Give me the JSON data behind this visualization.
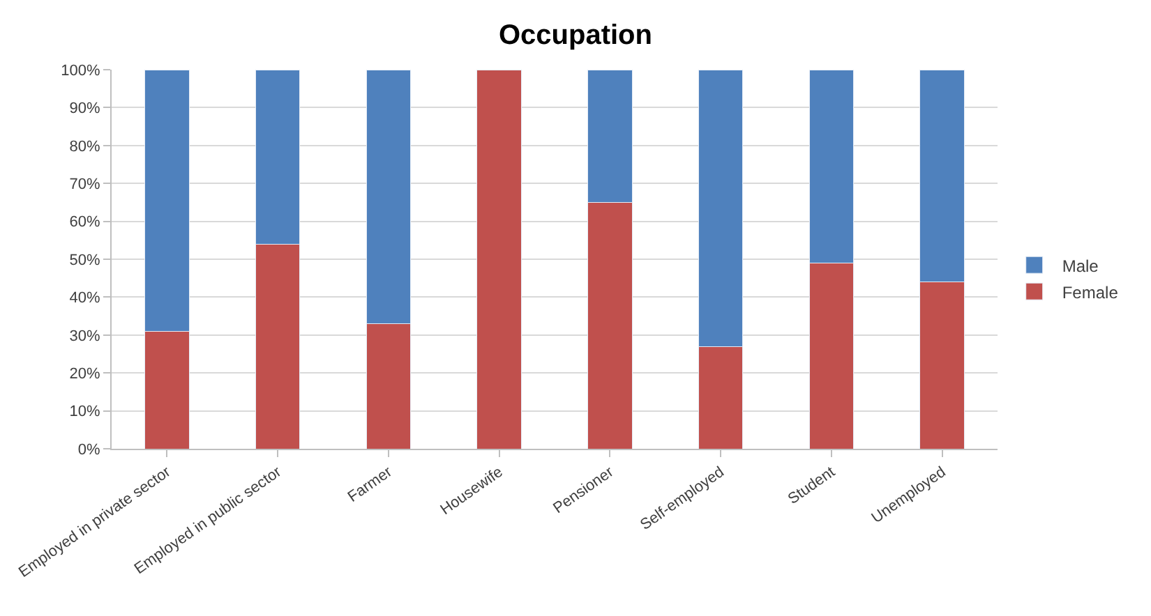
{
  "chart_data": {
    "type": "bar",
    "title": "Occupation",
    "stacked": true,
    "categories": [
      "Employed in private sector",
      "Employed in public sector",
      "Farmer",
      "Housewife",
      "Pensioner",
      "Self-employed",
      "Student",
      "Unemployed"
    ],
    "series": [
      {
        "name": "Female",
        "color": "#c0504d",
        "values": [
          31,
          54,
          33,
          100,
          65,
          27,
          49,
          44
        ]
      },
      {
        "name": "Male",
        "color": "#4f81bd",
        "values": [
          69,
          46,
          67,
          null,
          35,
          73,
          51,
          56
        ]
      }
    ],
    "ylim": [
      0,
      100
    ],
    "yticks": [
      {
        "value": 0,
        "label": "0%"
      },
      {
        "value": 10,
        "label": "10%"
      },
      {
        "value": 20,
        "label": "20%"
      },
      {
        "value": 30,
        "label": "30%"
      },
      {
        "value": 40,
        "label": "40%"
      },
      {
        "value": 50,
        "label": "50%"
      },
      {
        "value": 60,
        "label": "60%"
      },
      {
        "value": 70,
        "label": "70%"
      },
      {
        "value": 80,
        "label": "80%"
      },
      {
        "value": 90,
        "label": "90%"
      },
      {
        "value": 100,
        "label": "100%"
      }
    ],
    "grid": "y",
    "legend": "right"
  }
}
